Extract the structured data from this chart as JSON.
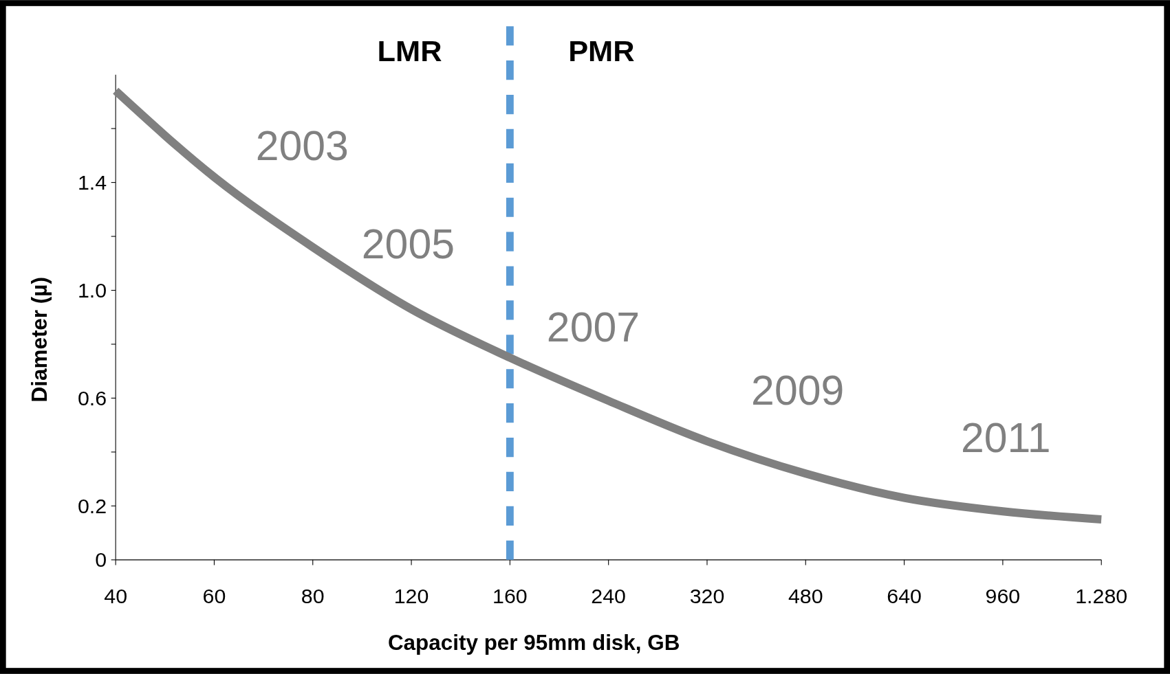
{
  "chart_data": {
    "type": "line",
    "xlabel": "Capacity per 95mm disk, GB",
    "ylabel": "Diameter (µ)",
    "categories": [
      "40",
      "60",
      "80",
      "120",
      "160",
      "240",
      "320",
      "480",
      "640",
      "960",
      "1.280"
    ],
    "series": [
      {
        "color": "#808080",
        "values": [
          1.74,
          1.42,
          1.16,
          0.93,
          0.75,
          0.59,
          0.44,
          0.32,
          0.23,
          0.18,
          0.15
        ]
      }
    ],
    "ylim": [
      0,
      1.8
    ],
    "yticks": [
      0,
      0.2,
      {
        "value": 0.4,
        "label": null
      },
      0.6,
      {
        "value": 0.8,
        "label": null
      },
      {
        "value": 1.0,
        "label": "1.0"
      },
      {
        "value": 1.2,
        "label": null
      },
      1.4,
      {
        "value": 1.6,
        "label": null
      }
    ],
    "ref_lines": [
      {
        "axis": "x",
        "value": "160",
        "color": "#5b9bd5",
        "line_style": "dashed"
      }
    ],
    "annotations": [
      "LMR",
      "PMR",
      "2003",
      "2005",
      "2007",
      "2009",
      "2011"
    ],
    "grid": false,
    "marker": "none",
    "line_style": "solid"
  }
}
